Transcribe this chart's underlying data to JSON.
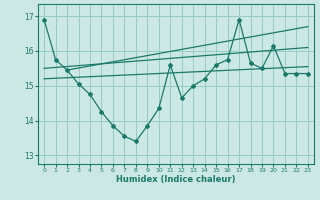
{
  "xlabel": "Humidex (Indice chaleur)",
  "bg_color": "#cce8e4",
  "grid_color": "#99ccc6",
  "line_color": "#1a7a6a",
  "xlim": [
    -0.5,
    23.5
  ],
  "ylim": [
    12.75,
    17.35
  ],
  "yticks": [
    13,
    14,
    15,
    16,
    17
  ],
  "xticks": [
    0,
    1,
    2,
    3,
    4,
    5,
    6,
    7,
    8,
    9,
    10,
    11,
    12,
    13,
    14,
    15,
    16,
    17,
    18,
    19,
    20,
    21,
    22,
    23
  ],
  "main_x": [
    0,
    1,
    2,
    3,
    4,
    5,
    6,
    7,
    8,
    9,
    10,
    11,
    12,
    13,
    14,
    15,
    16,
    17,
    18,
    19,
    20,
    21,
    22,
    23
  ],
  "main_y": [
    16.9,
    15.75,
    15.45,
    15.05,
    14.75,
    14.25,
    13.85,
    13.55,
    13.4,
    13.85,
    14.35,
    15.6,
    14.65,
    15.0,
    15.2,
    15.6,
    15.75,
    16.9,
    15.65,
    15.5,
    16.15,
    15.35,
    15.35,
    15.35
  ],
  "trend1_x": [
    0,
    23
  ],
  "trend1_y": [
    15.5,
    16.1
  ],
  "trend2_x": [
    0,
    23
  ],
  "trend2_y": [
    15.2,
    15.55
  ],
  "trend3_x": [
    2,
    23
  ],
  "trend3_y": [
    15.45,
    16.7
  ]
}
